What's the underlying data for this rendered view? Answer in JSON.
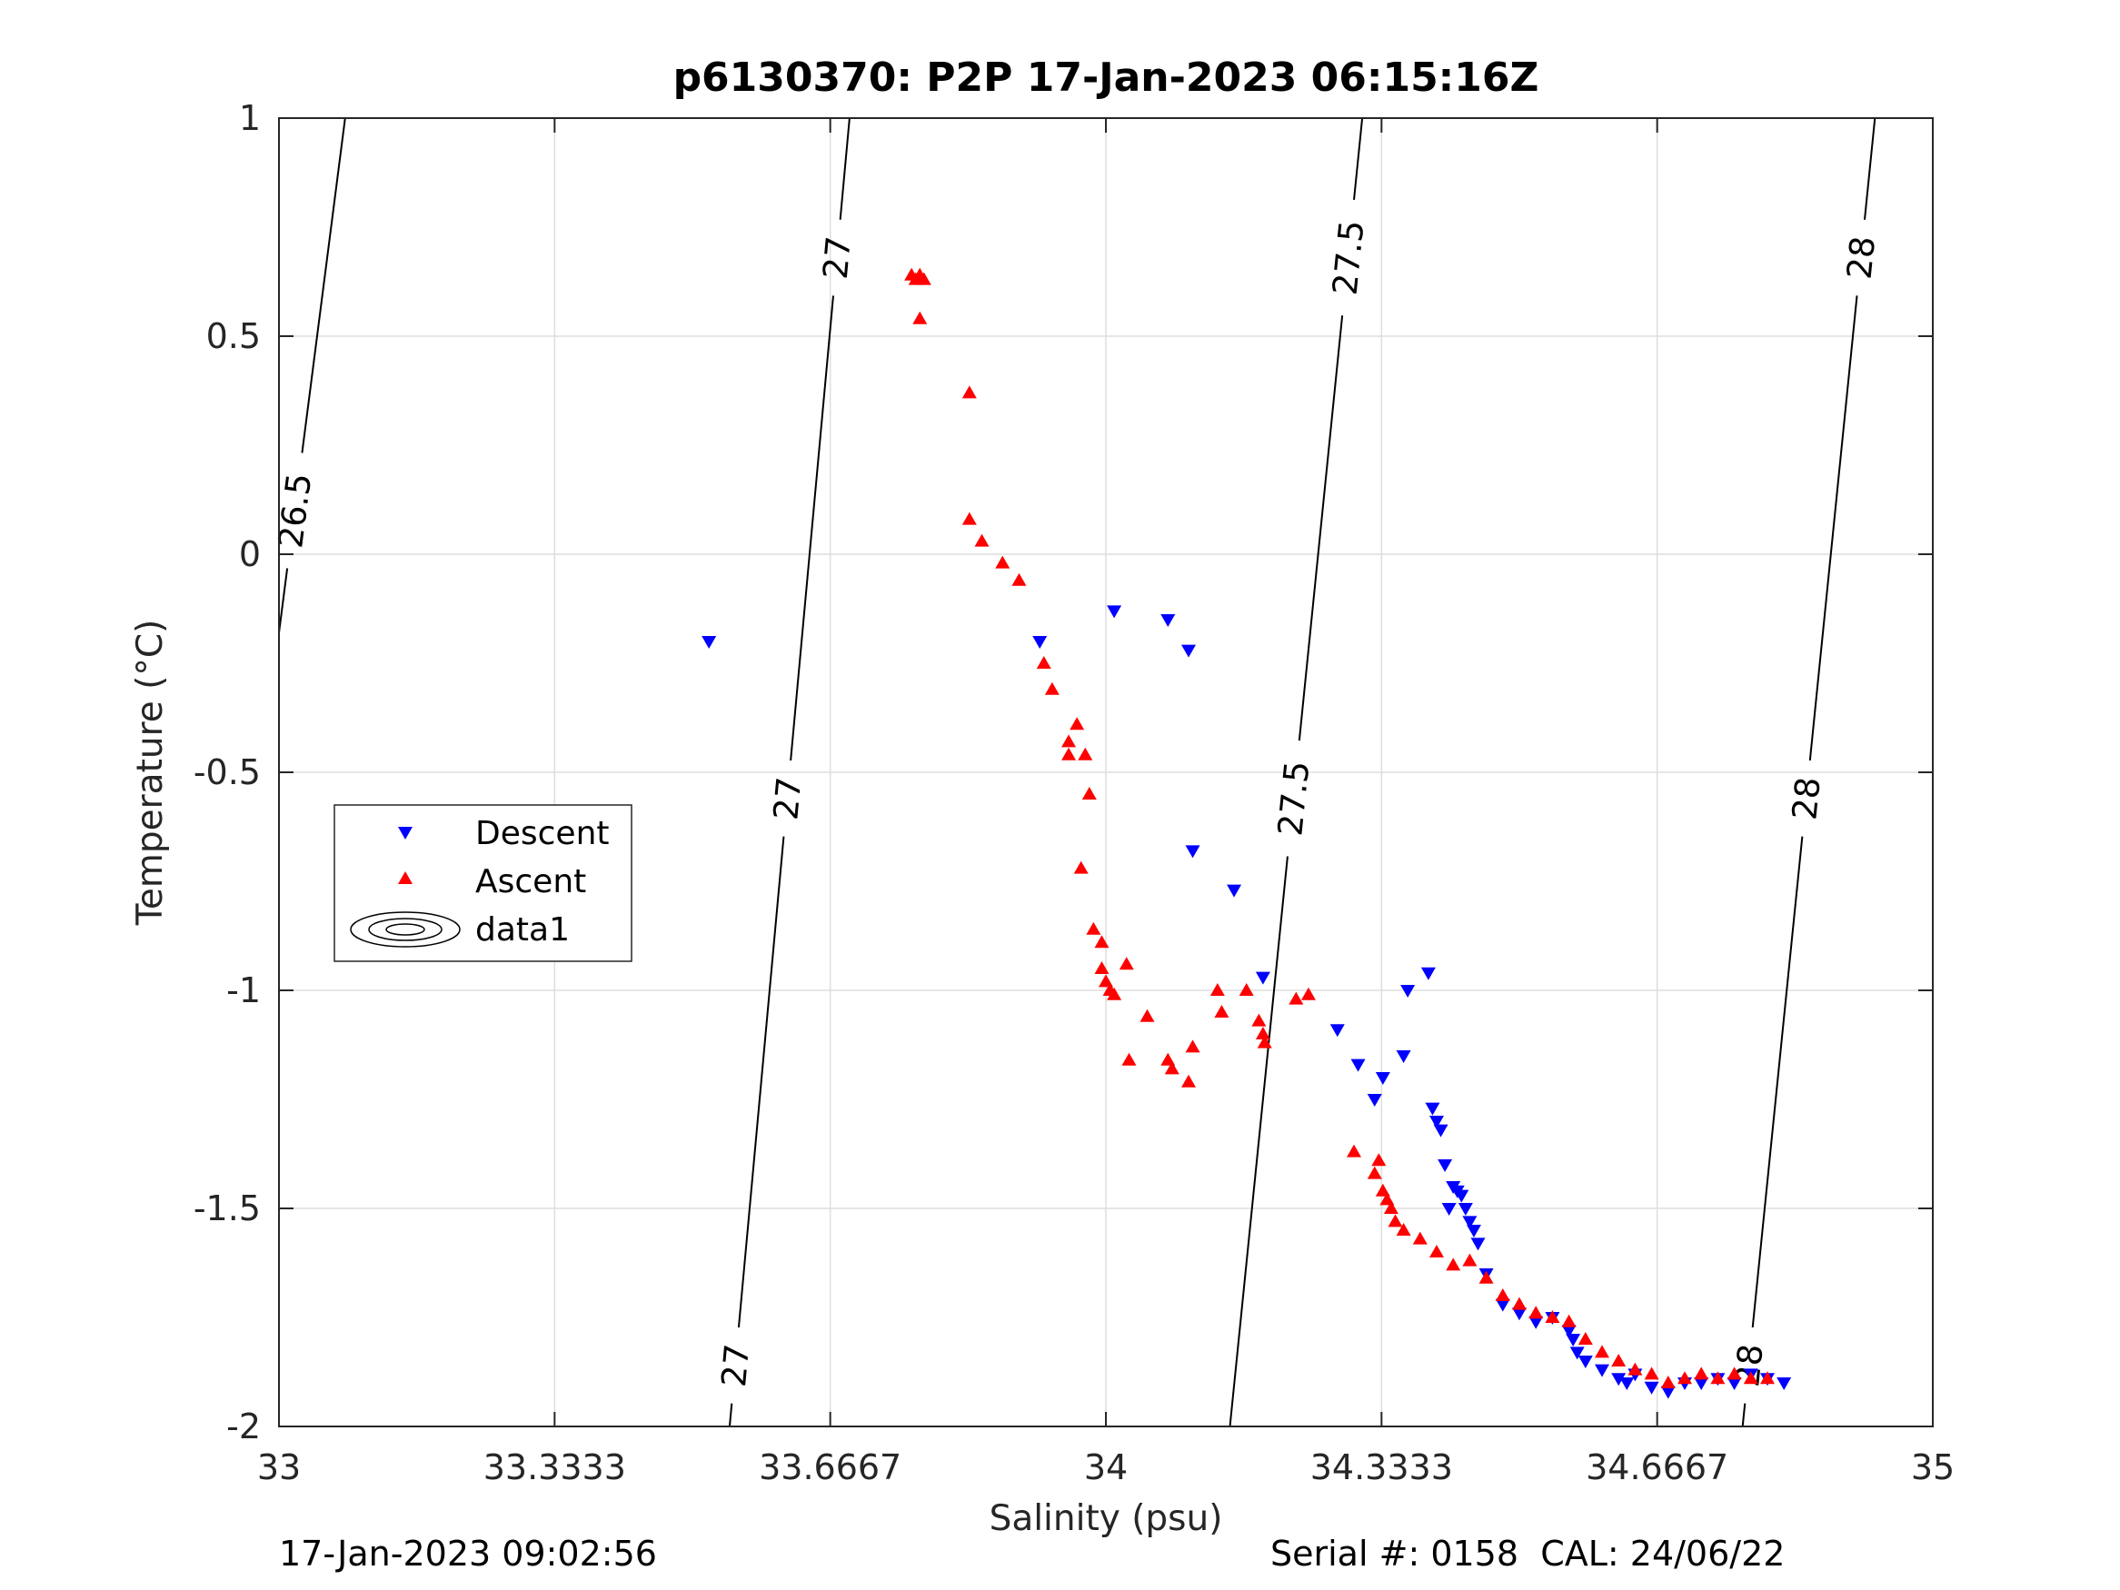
{
  "chart_data": {
    "type": "scatter",
    "title": "p6130370: P2P 17-Jan-2023 06:15:16Z",
    "xlabel": "Salinity (psu)",
    "ylabel": "Temperature (°C)",
    "xlim": [
      33,
      35
    ],
    "ylim": [
      -2,
      1
    ],
    "x_ticks": [
      "33",
      "33.3333",
      "33.6667",
      "34",
      "34.3333",
      "34.6667",
      "35"
    ],
    "y_ticks": [
      "-2",
      "-1.5",
      "-1",
      "-0.5",
      "0",
      "0.5",
      "1"
    ],
    "grid": true,
    "legend_position": "left-middle",
    "series": [
      {
        "name": "Descent",
        "marker": "triangle-down",
        "color": "#0000ff",
        "x": [
          33.52,
          33.92,
          34.01,
          34.075,
          34.1,
          34.105,
          34.155,
          34.19,
          34.28,
          34.305,
          34.325,
          34.335,
          34.36,
          34.365,
          34.39,
          34.395,
          34.4,
          34.405,
          34.41,
          34.415,
          34.42,
          34.425,
          34.43,
          34.435,
          34.44,
          34.445,
          34.45,
          34.46,
          34.48,
          34.5,
          34.52,
          34.54,
          34.56,
          34.565,
          34.57,
          34.58,
          34.6,
          34.62,
          34.63,
          34.64,
          34.66,
          34.68,
          34.7,
          34.72,
          34.74,
          34.76,
          34.78,
          34.8,
          34.82
        ],
        "y": [
          -0.2,
          -0.2,
          -0.13,
          -0.15,
          -0.22,
          -0.68,
          -0.77,
          -0.97,
          -1.09,
          -1.17,
          -1.25,
          -1.2,
          -1.15,
          -1.0,
          -0.96,
          -1.27,
          -1.3,
          -1.32,
          -1.4,
          -1.5,
          -1.45,
          -1.46,
          -1.47,
          -1.5,
          -1.53,
          -1.55,
          -1.58,
          -1.65,
          -1.72,
          -1.74,
          -1.76,
          -1.75,
          -1.78,
          -1.8,
          -1.83,
          -1.85,
          -1.87,
          -1.89,
          -1.9,
          -1.88,
          -1.91,
          -1.92,
          -1.9,
          -1.9,
          -1.89,
          -1.9,
          -1.88,
          -1.89,
          -1.9
        ]
      },
      {
        "name": "Ascent",
        "marker": "triangle-up",
        "color": "#ff0000",
        "x": [
          33.765,
          33.77,
          33.775,
          33.78,
          33.775,
          33.835,
          33.835,
          33.85,
          33.875,
          33.895,
          33.925,
          33.935,
          33.965,
          33.955,
          33.955,
          33.975,
          33.98,
          33.97,
          33.985,
          33.995,
          33.995,
          34.0,
          34.005,
          34.01,
          34.025,
          34.028,
          34.05,
          34.075,
          34.08,
          34.1,
          34.105,
          34.135,
          34.14,
          34.17,
          34.185,
          34.19,
          34.192,
          34.23,
          34.245,
          34.3,
          34.325,
          34.33,
          34.335,
          34.34,
          34.345,
          34.35,
          34.36,
          34.38,
          34.4,
          34.42,
          34.44,
          34.46,
          34.48,
          34.5,
          34.52,
          34.54,
          34.56,
          34.58,
          34.6,
          34.62,
          34.64,
          34.66,
          34.68,
          34.7,
          34.72,
          34.74,
          34.76,
          34.78,
          34.8
        ],
        "y": [
          0.64,
          0.63,
          0.64,
          0.63,
          0.54,
          0.37,
          0.08,
          0.03,
          -0.02,
          -0.06,
          -0.25,
          -0.31,
          -0.39,
          -0.43,
          -0.46,
          -0.46,
          -0.55,
          -0.72,
          -0.86,
          -0.89,
          -0.95,
          -0.98,
          -1.0,
          -1.01,
          -0.94,
          -1.16,
          -1.06,
          -1.16,
          -1.18,
          -1.21,
          -1.13,
          -1.0,
          -1.05,
          -1.0,
          -1.07,
          -1.1,
          -1.12,
          -1.02,
          -1.01,
          -1.37,
          -1.42,
          -1.39,
          -1.46,
          -1.48,
          -1.5,
          -1.53,
          -1.55,
          -1.57,
          -1.6,
          -1.63,
          -1.62,
          -1.66,
          -1.7,
          -1.72,
          -1.74,
          -1.75,
          -1.76,
          -1.8,
          -1.83,
          -1.85,
          -1.87,
          -1.88,
          -1.9,
          -1.89,
          -1.88,
          -1.89,
          -1.88,
          -1.89,
          -1.89
        ]
      },
      {
        "name": "data1",
        "marker": "contour"
      }
    ],
    "isopycnals": [
      {
        "sigma": 26.5,
        "label": "26.5",
        "from": [
          33.0,
          -0.18
        ],
        "to": [
          33.08,
          1.0
        ],
        "labels_at_y": [
          0.1
        ]
      },
      {
        "sigma": 27.0,
        "label": "27",
        "from": [
          33.545,
          -2.0
        ],
        "to": [
          33.69,
          1.0
        ],
        "labels_at_y": [
          -1.86,
          -0.56,
          0.68
        ]
      },
      {
        "sigma": 27.5,
        "label": "27.5",
        "from": [
          34.15,
          -2.0
        ],
        "to": [
          34.31,
          1.0
        ],
        "labels_at_y": [
          -0.56,
          0.68
        ]
      },
      {
        "sigma": 28.0,
        "label": "28",
        "from": [
          34.77,
          -2.0
        ],
        "to": [
          34.93,
          1.0
        ],
        "labels_at_y": [
          -1.86,
          -0.56,
          0.68
        ]
      }
    ]
  },
  "footer": {
    "left": "17-Jan-2023 09:02:56",
    "right": "Serial #: 0158  CAL: 24/06/22"
  }
}
